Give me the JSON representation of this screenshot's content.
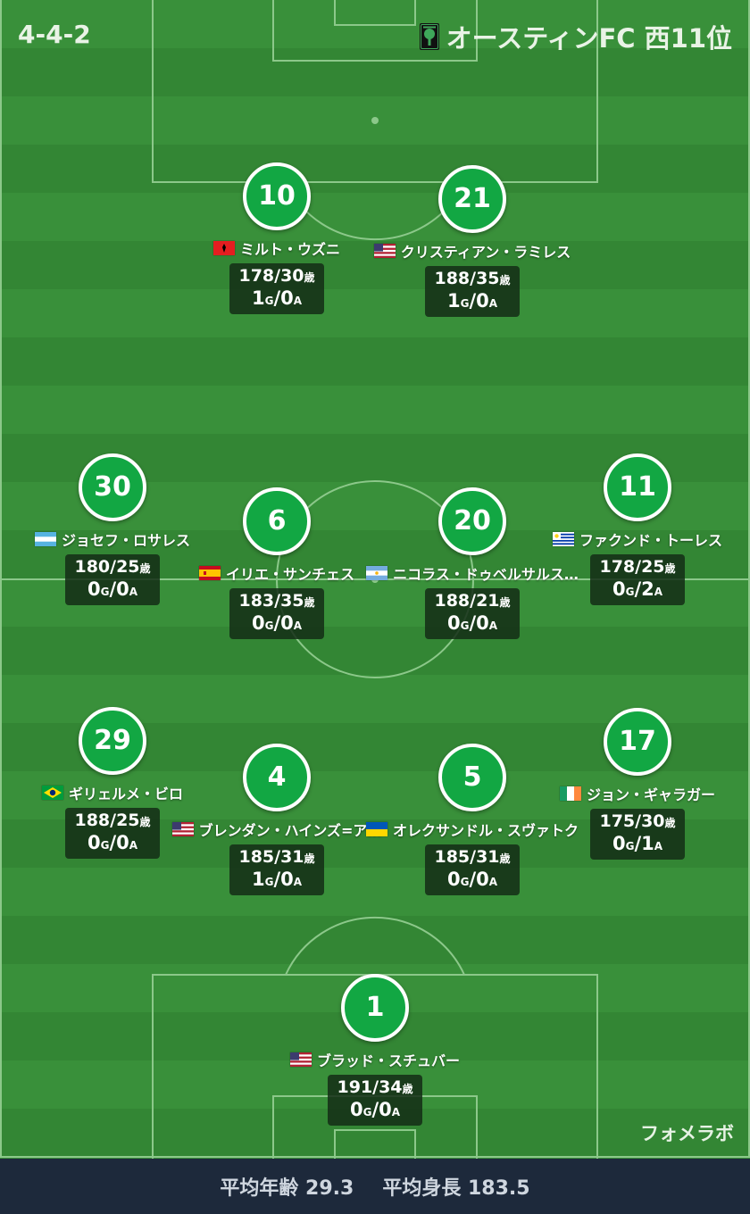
{
  "header": {
    "formation": "4-4-2",
    "team": "オースティンFC 西11位"
  },
  "players": [
    {
      "number": "10",
      "name": "ミルト・ウズニ",
      "flag": "albania",
      "height_age": "178/30",
      "goals": "1",
      "assists": "0"
    },
    {
      "number": "21",
      "name": "クリスティアン・ラミレス",
      "flag": "usa",
      "height_age": "188/35",
      "goals": "1",
      "assists": "0"
    },
    {
      "number": "30",
      "name": "ジョセフ・ロサレス",
      "flag": "honduras",
      "height_age": "180/25",
      "goals": "0",
      "assists": "0"
    },
    {
      "number": "6",
      "name": "イリエ・サンチェス",
      "flag": "spain",
      "height_age": "183/35",
      "goals": "0",
      "assists": "0"
    },
    {
      "number": "20",
      "name": "ニコラス・ドゥベルサルス…",
      "flag": "argentina",
      "height_age": "188/21",
      "goals": "0",
      "assists": "0"
    },
    {
      "number": "11",
      "name": "ファクンド・トーレス",
      "flag": "uruguay",
      "height_age": "178/25",
      "goals": "0",
      "assists": "2"
    },
    {
      "number": "29",
      "name": "ギリェルメ・ビロ",
      "flag": "brazil",
      "height_age": "188/25",
      "goals": "0",
      "assists": "0"
    },
    {
      "number": "4",
      "name": "ブレンダン・ハインズ=ア…",
      "flag": "usa",
      "height_age": "185/31",
      "goals": "1",
      "assists": "0"
    },
    {
      "number": "5",
      "name": "オレクサンドル・スヴァトク",
      "flag": "ukraine",
      "height_age": "185/31",
      "goals": "0",
      "assists": "0"
    },
    {
      "number": "17",
      "name": "ジョン・ギャラガー",
      "flag": "ireland",
      "height_age": "175/30",
      "goals": "0",
      "assists": "1"
    },
    {
      "number": "1",
      "name": "ブラッド・スチュバー",
      "flag": "usa",
      "height_age": "191/34",
      "goals": "0",
      "assists": "0"
    }
  ],
  "labels": {
    "age_suffix": "歳",
    "goal_suffix": "G",
    "assist_suffix": "A"
  },
  "credit": "フォメラボ",
  "footer": {
    "avg_age": "平均年齢 29.3",
    "avg_height": "平均身長 183.5"
  },
  "colors": {
    "pitch_light": "#39903a",
    "pitch_dark": "#338634",
    "number_circle": "#12a743",
    "footer_bg": "#1d293b"
  }
}
